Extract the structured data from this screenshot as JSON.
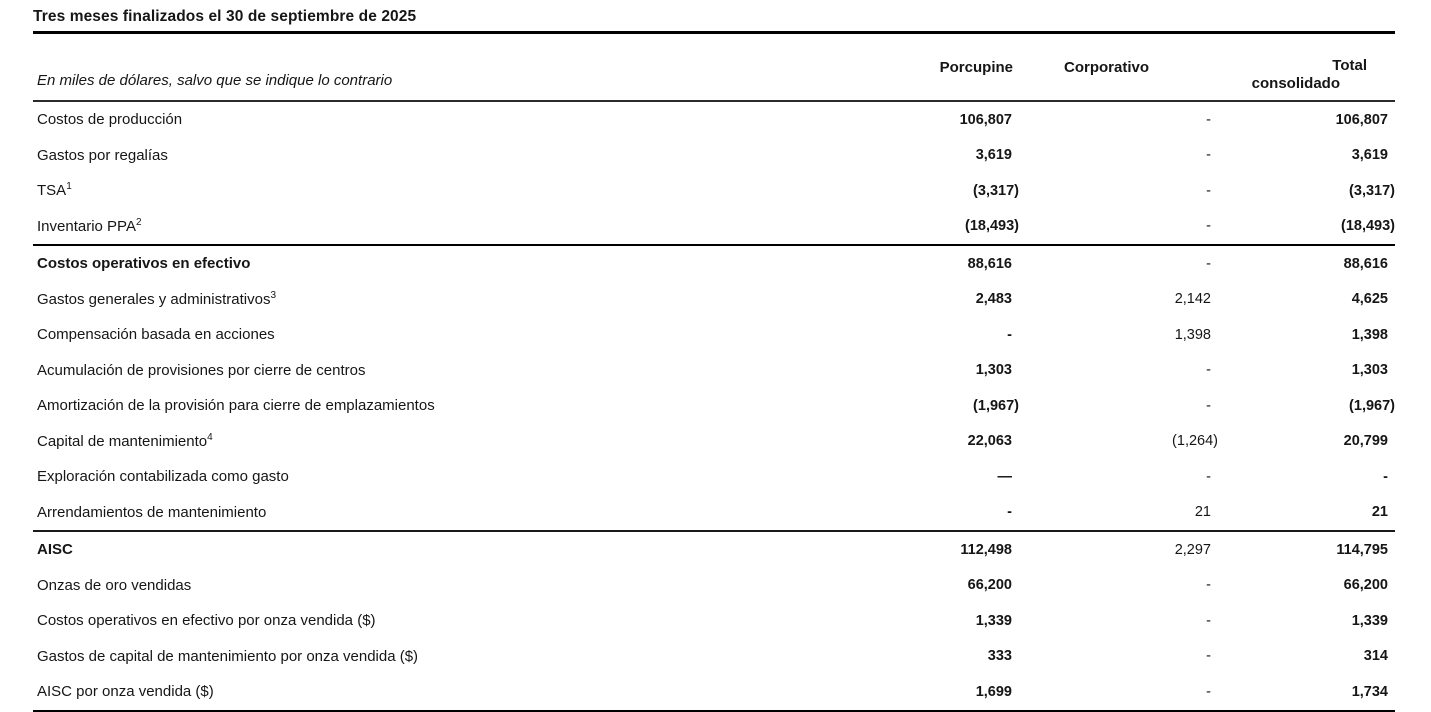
{
  "title": "Tres meses finalizados el 30 de septiembre de 2025",
  "table": {
    "subtitle": "En miles de dólares, salvo que se indique lo contrario",
    "columns": [
      {
        "label": "Porcupine"
      },
      {
        "label": "Corporativo"
      },
      {
        "label": "Total",
        "label2": "consolidado"
      }
    ],
    "rows": [
      {
        "label": "Costos de producción",
        "values": [
          "106,807",
          "-",
          "106,807"
        ]
      },
      {
        "label": "Gastos por regalías",
        "values": [
          "3,619",
          "-",
          "3,619"
        ]
      },
      {
        "label": "TSA",
        "sup": "1",
        "values": [
          "(3,317)",
          "-",
          "(3,317)"
        ]
      },
      {
        "label": "Inventario PPA",
        "sup": "2",
        "values": [
          "(18,493)",
          "-",
          "(18,493)"
        ],
        "rule_after": "medium"
      },
      {
        "label": "Costos operativos en efectivo",
        "emphasis": true,
        "values": [
          "88,616",
          "-",
          "88,616"
        ]
      },
      {
        "label": "Gastos generales y administrativos",
        "sup": "3",
        "values": [
          "2,483",
          "2,142",
          "4,625"
        ]
      },
      {
        "label": "Compensación basada en acciones",
        "values": [
          "-",
          "1,398",
          "1,398"
        ]
      },
      {
        "label": "Acumulación de provisiones por cierre de centros",
        "values": [
          "1,303",
          "-",
          "1,303"
        ]
      },
      {
        "label": "Amortización de la provisión para cierre de emplazamientos",
        "values": [
          "(1,967)",
          "-",
          "(1,967)"
        ]
      },
      {
        "label": "Capital de mantenimiento",
        "sup": "4",
        "values": [
          "22,063",
          "(1,264)",
          "20,799"
        ]
      },
      {
        "label": "Exploración contabilizada como gasto",
        "values": [
          "—",
          "-",
          "-"
        ]
      },
      {
        "label": "Arrendamientos de mantenimiento",
        "values": [
          "-",
          "21",
          "21"
        ],
        "rule_after": "thin"
      },
      {
        "label": "AISC",
        "emphasis": true,
        "values": [
          "112,498",
          "2,297",
          "114,795"
        ]
      },
      {
        "label": "Onzas de oro vendidas",
        "values": [
          "66,200",
          "-",
          "66,200"
        ]
      },
      {
        "label": "Costos operativos en efectivo por onza vendida ($)",
        "values": [
          "1,339",
          "-",
          "1,339"
        ]
      },
      {
        "label": "Gastos de capital de mantenimiento por onza vendida ($)",
        "values": [
          "333",
          "-",
          "314"
        ]
      },
      {
        "label": "AISC por onza vendida ($)",
        "values": [
          "1,699",
          "-",
          "1,734"
        ]
      }
    ]
  }
}
